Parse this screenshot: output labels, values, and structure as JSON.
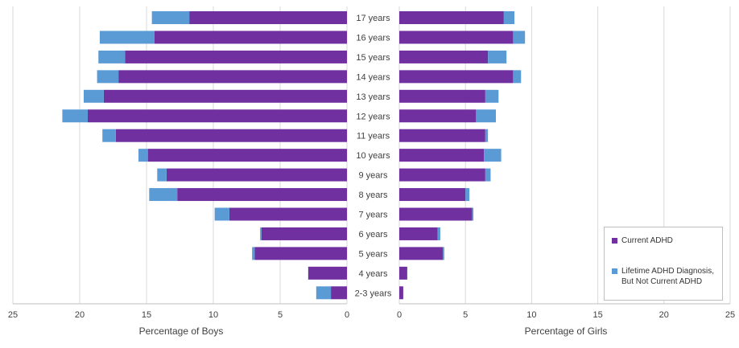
{
  "chart_data": {
    "type": "bar",
    "orientation": "horizontal",
    "layout": "back-to-back pyramid",
    "categories": [
      "17 years",
      "16 years",
      "15 years",
      "14 years",
      "13 years",
      "12 years",
      "11 years",
      "10 years",
      "9 years",
      "8 years",
      "7 years",
      "6 years",
      "5 years",
      "4 years",
      "2-3 years"
    ],
    "left_panel": {
      "xlabel": "Percentage of Boys",
      "xlim": [
        0,
        25
      ],
      "xticks": [
        "25",
        "20",
        "15",
        "10",
        "5",
        "0"
      ],
      "series": [
        {
          "name": "Current ADHD",
          "values": [
            11.8,
            14.4,
            16.6,
            17.1,
            18.2,
            19.4,
            17.3,
            14.9,
            13.5,
            12.7,
            8.8,
            6.4,
            6.9,
            2.9,
            1.2
          ]
        },
        {
          "name": "Lifetime ADHD Diagnosis, But Not Current ADHD",
          "values": [
            2.8,
            4.1,
            2.0,
            1.6,
            1.5,
            1.9,
            1.0,
            0.7,
            0.7,
            2.1,
            1.1,
            0.1,
            0.2,
            0.0,
            1.1
          ]
        }
      ]
    },
    "right_panel": {
      "xlabel": "Percentage of Girls",
      "xlim": [
        0,
        25
      ],
      "xticks": [
        "0",
        "5",
        "10",
        "15",
        "20",
        "25"
      ],
      "series": [
        {
          "name": "Current ADHD",
          "values": [
            7.9,
            8.6,
            6.7,
            8.6,
            6.5,
            5.8,
            6.5,
            6.4,
            6.5,
            5.0,
            5.5,
            2.9,
            3.3,
            0.6,
            0.3
          ]
        },
        {
          "name": "Lifetime ADHD Diagnosis, But Not Current ADHD",
          "values": [
            0.8,
            0.9,
            1.4,
            0.6,
            1.0,
            1.5,
            0.2,
            1.3,
            0.4,
            0.3,
            0.1,
            0.2,
            0.1,
            0.0,
            0.0
          ]
        }
      ]
    },
    "legend": {
      "position": "bottom-right",
      "items": [
        {
          "label": "Current ADHD",
          "color": "#70309f"
        },
        {
          "label": "Lifetime ADHD Diagnosis,\nBut Not Current ADHD",
          "color": "#5b9bd5"
        }
      ]
    },
    "grid": "vertical",
    "colors": {
      "current": "#70309f",
      "lifetime": "#5b9bd5",
      "grid": "#d9d9d9"
    }
  }
}
